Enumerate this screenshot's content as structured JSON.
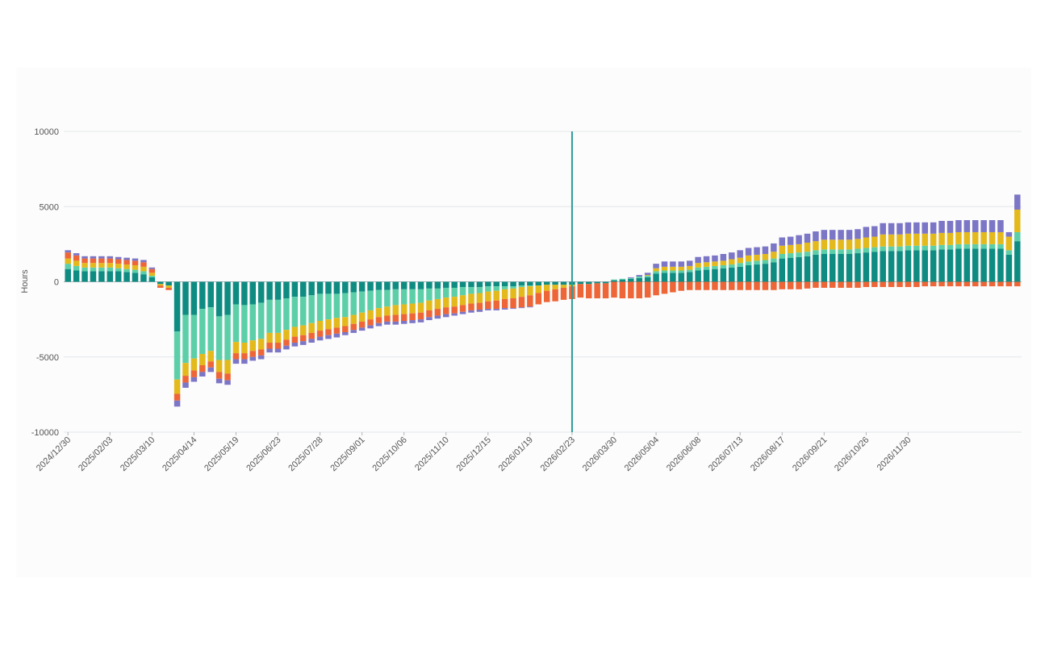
{
  "colors": {
    "teal": "#0f8c82",
    "mint": "#5ccfa9",
    "yellow": "#e4b91c",
    "orange": "#ee6637",
    "purple": "#7c76c6",
    "marker": "#2a9d9a",
    "grid": "#e3e6ea",
    "zero": "#b0b5bb"
  },
  "chart_data": {
    "type": "bar",
    "stacked": true,
    "ylabel": "Hours",
    "ylim": [
      -10000,
      10000
    ],
    "yticks": [
      -10000,
      -5000,
      0,
      5000,
      10000
    ],
    "grid": true,
    "x_start": "2024/12/30",
    "x_interval": "weekly",
    "tick_labels": [
      "2024/12/30",
      "2025/02/03",
      "2025/03/10",
      "2025/04/14",
      "2025/05/19",
      "2025/06/23",
      "2025/07/28",
      "2025/09/01",
      "2025/10/06",
      "2025/11/10",
      "2025/12/15",
      "2026/01/19",
      "2026/02/23",
      "2026/03/30",
      "2026/05/04",
      "2026/06/08",
      "2026/07/13",
      "2026/08/17",
      "2026/09/21",
      "2026/10/26",
      "2026/11/30"
    ],
    "marker_date": "2026/02/23",
    "series": [
      {
        "color_key": "teal",
        "values": [
          850,
          750,
          700,
          700,
          700,
          700,
          700,
          650,
          600,
          500,
          300,
          -150,
          -250,
          -3300,
          -2200,
          -2200,
          -1800,
          -1700,
          -2300,
          -2200,
          -1500,
          -1550,
          -1500,
          -1400,
          -1200,
          -1200,
          -1100,
          -1000,
          -1000,
          -900,
          -800,
          -800,
          -800,
          -750,
          -700,
          -650,
          -600,
          -550,
          -550,
          -500,
          -500,
          -500,
          -500,
          -450,
          -450,
          -400,
          -400,
          -350,
          -350,
          -350,
          -300,
          -300,
          -300,
          -300,
          -250,
          -250,
          -250,
          -200,
          -200,
          -200,
          -200,
          -150,
          -150,
          -100,
          -100,
          100,
          150,
          200,
          250,
          300,
          550,
          600,
          600,
          600,
          650,
          750,
          800,
          850,
          900,
          950,
          1000,
          1100,
          1150,
          1200,
          1300,
          1550,
          1600,
          1650,
          1700,
          1800,
          1850,
          1850,
          1850,
          1850,
          1900,
          1950,
          2000,
          2050,
          2050,
          2050,
          2100,
          2100,
          2100,
          2100,
          2150,
          2150,
          2200,
          2200,
          2200,
          2200,
          2200,
          2200,
          1800,
          2700
        ]
      },
      {
        "color_key": "mint",
        "values": [
          350,
          300,
          250,
          250,
          250,
          250,
          200,
          200,
          200,
          200,
          100,
          0,
          0,
          -3200,
          -3200,
          -2900,
          -3000,
          -2900,
          -2900,
          -3000,
          -2500,
          -2500,
          -2400,
          -2400,
          -2200,
          -2200,
          -2100,
          -2000,
          -1900,
          -1850,
          -1800,
          -1700,
          -1600,
          -1600,
          -1500,
          -1400,
          -1300,
          -1200,
          -1100,
          -1050,
          -1000,
          -950,
          -900,
          -800,
          -700,
          -650,
          -600,
          -550,
          -450,
          -400,
          -350,
          -300,
          -200,
          -150,
          -100,
          -50,
          0,
          0,
          0,
          0,
          0,
          0,
          0,
          0,
          0,
          50,
          50,
          50,
          100,
          100,
          150,
          150,
          150,
          150,
          150,
          200,
          200,
          200,
          200,
          200,
          250,
          250,
          250,
          250,
          250,
          300,
          300,
          300,
          300,
          300,
          300,
          300,
          300,
          300,
          300,
          300,
          300,
          300,
          300,
          300,
          300,
          300,
          300,
          300,
          300,
          300,
          300,
          300,
          300,
          300,
          300,
          300,
          300,
          600
        ]
      },
      {
        "color_key": "yellow",
        "values": [
          350,
          350,
          300,
          300,
          300,
          300,
          300,
          300,
          300,
          300,
          200,
          -100,
          -150,
          -950,
          -850,
          -800,
          -750,
          -700,
          -800,
          -900,
          -750,
          -700,
          -700,
          -700,
          -650,
          -650,
          -650,
          -650,
          -650,
          -650,
          -650,
          -650,
          -650,
          -600,
          -600,
          -600,
          -600,
          -600,
          -600,
          -650,
          -650,
          -650,
          -650,
          -650,
          -650,
          -650,
          -650,
          -650,
          -650,
          -650,
          -650,
          -650,
          -650,
          -650,
          -650,
          -600,
          -500,
          -400,
          -300,
          -200,
          -100,
          0,
          0,
          0,
          0,
          0,
          0,
          0,
          0,
          50,
          200,
          250,
          250,
          250,
          250,
          300,
          300,
          300,
          300,
          350,
          350,
          400,
          400,
          400,
          450,
          550,
          550,
          550,
          600,
          600,
          650,
          650,
          650,
          650,
          650,
          700,
          700,
          800,
          800,
          800,
          800,
          800,
          800,
          800,
          800,
          800,
          800,
          800,
          800,
          800,
          800,
          800,
          900,
          1500
        ]
      },
      {
        "color_key": "orange",
        "values": [
          400,
          350,
          300,
          300,
          300,
          300,
          300,
          300,
          300,
          300,
          250,
          -150,
          -150,
          -450,
          -450,
          -450,
          -450,
          -400,
          -450,
          -450,
          -400,
          -400,
          -400,
          -400,
          -400,
          -400,
          -400,
          -400,
          -400,
          -400,
          -400,
          -400,
          -400,
          -400,
          -400,
          -400,
          -400,
          -400,
          -400,
          -450,
          -450,
          -450,
          -450,
          -450,
          -450,
          -450,
          -450,
          -450,
          -450,
          -450,
          -500,
          -550,
          -600,
          -650,
          -700,
          -750,
          -750,
          -750,
          -800,
          -800,
          -850,
          -900,
          -950,
          -1000,
          -1000,
          -1050,
          -1100,
          -1100,
          -1100,
          -1050,
          -900,
          -800,
          -700,
          -600,
          -550,
          -550,
          -550,
          -550,
          -550,
          -550,
          -550,
          -550,
          -550,
          -550,
          -550,
          -500,
          -500,
          -500,
          -450,
          -400,
          -400,
          -400,
          -400,
          -400,
          -400,
          -350,
          -350,
          -350,
          -350,
          -350,
          -350,
          -350,
          -300,
          -300,
          -300,
          -300,
          -300,
          -300,
          -300,
          -300,
          -300,
          -300,
          -300,
          -300
        ]
      },
      {
        "color_key": "purple",
        "values": [
          150,
          150,
          150,
          150,
          150,
          150,
          150,
          150,
          150,
          150,
          100,
          0,
          0,
          -400,
          -350,
          -300,
          -300,
          -300,
          -300,
          -300,
          -300,
          -300,
          -250,
          -250,
          -250,
          -250,
          -250,
          -250,
          -250,
          -250,
          -250,
          -250,
          -250,
          -200,
          -200,
          -200,
          -200,
          -200,
          -200,
          -200,
          -200,
          -200,
          -200,
          -200,
          -200,
          -200,
          -150,
          -150,
          -150,
          -150,
          -100,
          -100,
          -100,
          -50,
          -50,
          -50,
          0,
          0,
          0,
          0,
          0,
          0,
          0,
          0,
          0,
          0,
          0,
          50,
          100,
          150,
          300,
          350,
          350,
          350,
          350,
          400,
          400,
          400,
          450,
          450,
          500,
          500,
          500,
          500,
          550,
          550,
          550,
          600,
          600,
          650,
          650,
          650,
          650,
          650,
          650,
          700,
          700,
          750,
          750,
          750,
          750,
          750,
          750,
          750,
          800,
          800,
          800,
          800,
          800,
          800,
          800,
          800,
          300,
          1000
        ]
      }
    ]
  }
}
